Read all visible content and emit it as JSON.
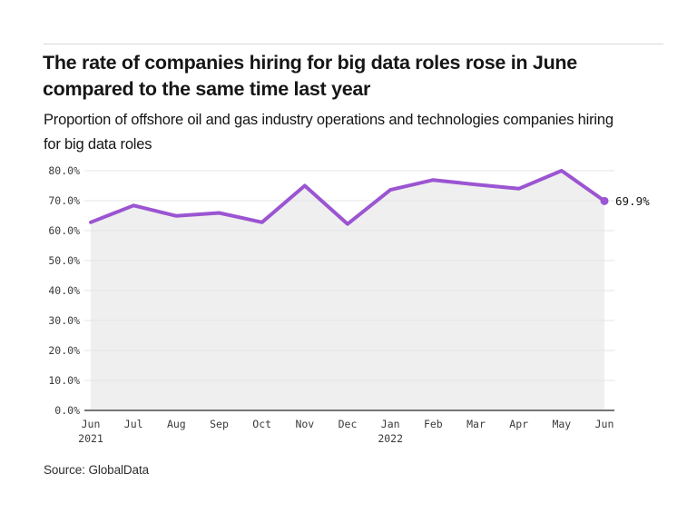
{
  "header": {
    "title": "The rate of companies hiring for big data roles rose in June compared to the same time last year",
    "subtitle": "Proportion of offshore oil and gas industry operations and technologies companies hiring for big data roles"
  },
  "footer": {
    "source": "Source: GlobalData"
  },
  "chart_data": {
    "type": "line",
    "title": "The rate of companies hiring for big data roles rose in June compared to the same time last year",
    "subtitle": "Proportion of offshore oil and gas industry operations and technologies companies hiring for big data roles",
    "categories": [
      "Jun",
      "Jul",
      "Aug",
      "Sep",
      "Oct",
      "Nov",
      "Dec",
      "Jan",
      "Feb",
      "Mar",
      "Apr",
      "May",
      "Jun"
    ],
    "year_labels": [
      {
        "index": 0,
        "label": "2021"
      },
      {
        "index": 7,
        "label": "2022"
      }
    ],
    "series": [
      {
        "name": "Proportion of companies hiring for big data roles",
        "values": [
          62.8,
          68.4,
          64.9,
          65.9,
          62.8,
          75.0,
          62.2,
          73.6,
          76.9,
          75.4,
          74.0,
          80.0,
          69.9
        ]
      }
    ],
    "y_ticks": [
      {
        "value": 0,
        "label": "0.0%"
      },
      {
        "value": 10,
        "label": "10.0%"
      },
      {
        "value": 20,
        "label": "20.0%"
      },
      {
        "value": 30,
        "label": "30.0%"
      },
      {
        "value": 40,
        "label": "40.0%"
      },
      {
        "value": 50,
        "label": "50.0%"
      },
      {
        "value": 60,
        "label": "60.0%"
      },
      {
        "value": 70,
        "label": "70.0%"
      },
      {
        "value": 80,
        "label": "80.0%"
      }
    ],
    "ylim": [
      0,
      80
    ],
    "xlabel": "",
    "ylabel": "",
    "grid": true,
    "legend": false,
    "end_label": "69.9%",
    "colors": {
      "line": "#9b55d2",
      "end_dot": "#9b55d2",
      "area_fill": "#efefef",
      "gridline": "#e4e4e4",
      "axis_line": "#757575",
      "tick_text": "#3a3a3a",
      "end_label_text": "#161616"
    }
  }
}
